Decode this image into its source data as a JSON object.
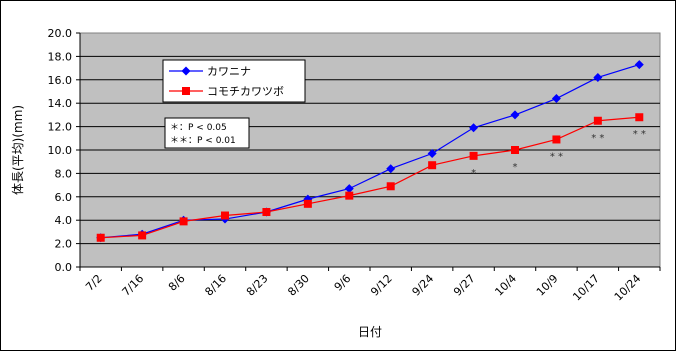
{
  "chart_data": {
    "type": "line",
    "title": "",
    "xlabel": "日付",
    "ylabel": "体長(平均)(mm)",
    "categories": [
      "7/2",
      "7/16",
      "8/6",
      "8/16",
      "8/23",
      "8/30",
      "9/6",
      "9/12",
      "9/24",
      "9/27",
      "10/4",
      "10/9",
      "10/17",
      "10/24"
    ],
    "ylim": [
      0,
      20
    ],
    "yticks": [
      "0.0",
      "2.0",
      "4.0",
      "6.0",
      "8.0",
      "10.0",
      "12.0",
      "14.0",
      "16.0",
      "18.0",
      "20.0"
    ],
    "grid": true,
    "legend_position": "top-left",
    "series": [
      {
        "name": "カワニナ",
        "color": "#0000ff",
        "marker": "diamond",
        "values": [
          2.5,
          2.8,
          4.0,
          4.1,
          4.7,
          5.8,
          6.7,
          8.4,
          9.7,
          11.9,
          13.0,
          14.4,
          16.2,
          17.3
        ]
      },
      {
        "name": "コモチカワツボ",
        "color": "#ff0000",
        "marker": "square",
        "values": [
          2.5,
          2.7,
          3.9,
          4.4,
          4.7,
          5.4,
          6.1,
          6.9,
          8.7,
          9.5,
          10.0,
          10.9,
          12.5,
          12.8
        ]
      }
    ],
    "significance": [
      {
        "index": 9,
        "label": "*"
      },
      {
        "index": 10,
        "label": "*"
      },
      {
        "index": 11,
        "label": "* *"
      },
      {
        "index": 12,
        "label": "* *"
      },
      {
        "index": 13,
        "label": "* *"
      }
    ],
    "note_lines": [
      "＊：P < 0.05",
      "＊＊：P < 0.01"
    ]
  }
}
